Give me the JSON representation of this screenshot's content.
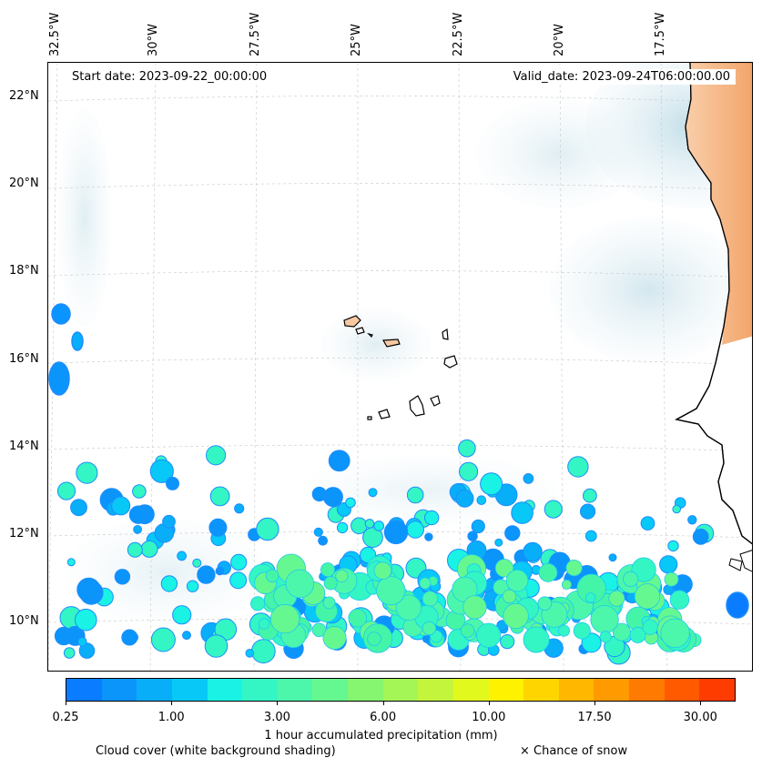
{
  "map": {
    "start_date": "Start date: 2023-09-22_00:00:00",
    "valid_date": "Valid_date: 2023-09-24T06:00:00.00",
    "longitude_labels": [
      "32.5°W",
      "30°W",
      "27.5°W",
      "25°W",
      "22.5°W",
      "20°W",
      "17.5°W"
    ],
    "latitude_labels": [
      "22°N",
      "20°N",
      "18°N",
      "16°N",
      "14°N",
      "12°N",
      "10°N"
    ],
    "land_color": "#f5a76c",
    "cloud_color": "#cfe6ee",
    "precip_core_color": "#44f5a8",
    "precip_edge_color": "#1e8cff"
  },
  "colorbar": {
    "colors": [
      "#0a7cff",
      "#0b95fb",
      "#09aef8",
      "#07c8f7",
      "#19f2e4",
      "#33f6c4",
      "#4cf7ac",
      "#66f890",
      "#86f570",
      "#a4f556",
      "#c3f53c",
      "#e2f91e",
      "#fff200",
      "#ffd500",
      "#ffb700",
      "#ff9a00",
      "#ff7a00",
      "#ff5a00",
      "#ff3c00"
    ],
    "tick_labels": [
      "0.25",
      "1.00",
      "3.00",
      "6.00",
      "10.00",
      "17.50",
      "30.00"
    ],
    "label": "1 hour accumulated precipitation (mm)"
  },
  "legend": {
    "cloud_note": "Cloud cover (white background shading)",
    "snow_note": "× Chance of snow"
  }
}
